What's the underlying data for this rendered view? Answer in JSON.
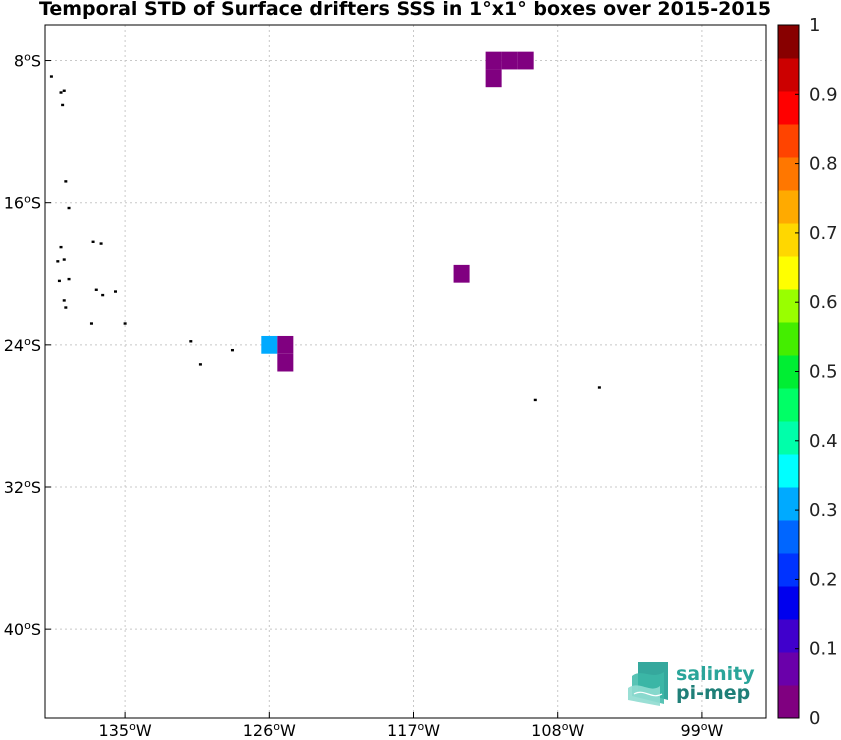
{
  "chart_data": {
    "type": "heatmap",
    "title": "Temporal STD of Surface drifters SSS in 1°x1° boxes over 2015-2015",
    "x_ticks": [
      {
        "value": -135,
        "hemi": "W",
        "num": "135",
        "deg": "o"
      },
      {
        "value": -126,
        "hemi": "W",
        "num": "126",
        "deg": "o"
      },
      {
        "value": -117,
        "hemi": "W",
        "num": "117",
        "deg": "o"
      },
      {
        "value": -108,
        "hemi": "W",
        "num": "108",
        "deg": "o"
      },
      {
        "value": -99,
        "hemi": "W",
        "num": "99",
        "deg": "o"
      }
    ],
    "y_ticks": [
      {
        "value": -8,
        "hemi": "S",
        "num": "8",
        "deg": "o"
      },
      {
        "value": -16,
        "hemi": "S",
        "num": "16",
        "deg": "o"
      },
      {
        "value": -24,
        "hemi": "S",
        "num": "24",
        "deg": "o"
      },
      {
        "value": -32,
        "hemi": "S",
        "num": "32",
        "deg": "o"
      },
      {
        "value": -40,
        "hemi": "S",
        "num": "40",
        "deg": "o"
      }
    ],
    "xlim": [
      -140,
      -95
    ],
    "ylim": [
      -45,
      -6
    ],
    "grid": true,
    "cells": [
      {
        "lon": -112,
        "lat": -8,
        "value": 0.02
      },
      {
        "lon": -111,
        "lat": -8,
        "value": 0.02
      },
      {
        "lon": -110,
        "lat": -8,
        "value": 0.02
      },
      {
        "lon": -112,
        "lat": -9,
        "value": 0.02
      },
      {
        "lon": -114,
        "lat": -20,
        "value": 0.02
      },
      {
        "lon": -126,
        "lat": -24,
        "value": 0.33
      },
      {
        "lon": -125,
        "lat": -24,
        "value": 0.02
      },
      {
        "lon": -125,
        "lat": -25,
        "value": 0.02
      }
    ],
    "islands": [
      {
        "lon": -139.6,
        "lat": -8.9
      },
      {
        "lon": -138.8,
        "lat": -9.7
      },
      {
        "lon": -139.0,
        "lat": -9.8
      },
      {
        "lon": -138.9,
        "lat": -10.5
      },
      {
        "lon": -138.7,
        "lat": -14.8
      },
      {
        "lon": -138.5,
        "lat": -16.3
      },
      {
        "lon": -137.0,
        "lat": -18.2
      },
      {
        "lon": -136.5,
        "lat": -18.3
      },
      {
        "lon": -139.0,
        "lat": -18.5
      },
      {
        "lon": -138.8,
        "lat": -19.2
      },
      {
        "lon": -139.2,
        "lat": -19.3
      },
      {
        "lon": -138.5,
        "lat": -20.3
      },
      {
        "lon": -139.1,
        "lat": -20.4
      },
      {
        "lon": -136.8,
        "lat": -20.9
      },
      {
        "lon": -136.4,
        "lat": -21.2
      },
      {
        "lon": -135.6,
        "lat": -21.0
      },
      {
        "lon": -138.8,
        "lat": -21.5
      },
      {
        "lon": -138.7,
        "lat": -21.9
      },
      {
        "lon": -137.1,
        "lat": -22.8
      },
      {
        "lon": -135.0,
        "lat": -22.8
      },
      {
        "lon": -130.9,
        "lat": -23.8
      },
      {
        "lon": -130.3,
        "lat": -25.1
      },
      {
        "lon": -128.3,
        "lat": -24.3
      },
      {
        "lon": -109.4,
        "lat": -27.1
      },
      {
        "lon": -105.4,
        "lat": -26.4
      }
    ],
    "colorbar": {
      "min": 0,
      "max": 1,
      "ticks": [
        "0",
        "0.1",
        "0.2",
        "0.3",
        "0.4",
        "0.5",
        "0.6",
        "0.7",
        "0.8",
        "0.9",
        "1"
      ],
      "colors": [
        "#800080",
        "#6a00aa",
        "#4000cc",
        "#0000ee",
        "#0033ff",
        "#0066ff",
        "#00aaff",
        "#00ffff",
        "#00ffaa",
        "#00ff66",
        "#00ee33",
        "#44ee00",
        "#99ff00",
        "#ffff00",
        "#ffd700",
        "#ffaa00",
        "#ff7700",
        "#ff4400",
        "#ff0000",
        "#cc0000",
        "#880000"
      ]
    }
  },
  "logo": {
    "line1": "salinity",
    "line2": "pi-mep",
    "color_primary": "#2aa59a",
    "color_secondary": "#1f7f78"
  }
}
